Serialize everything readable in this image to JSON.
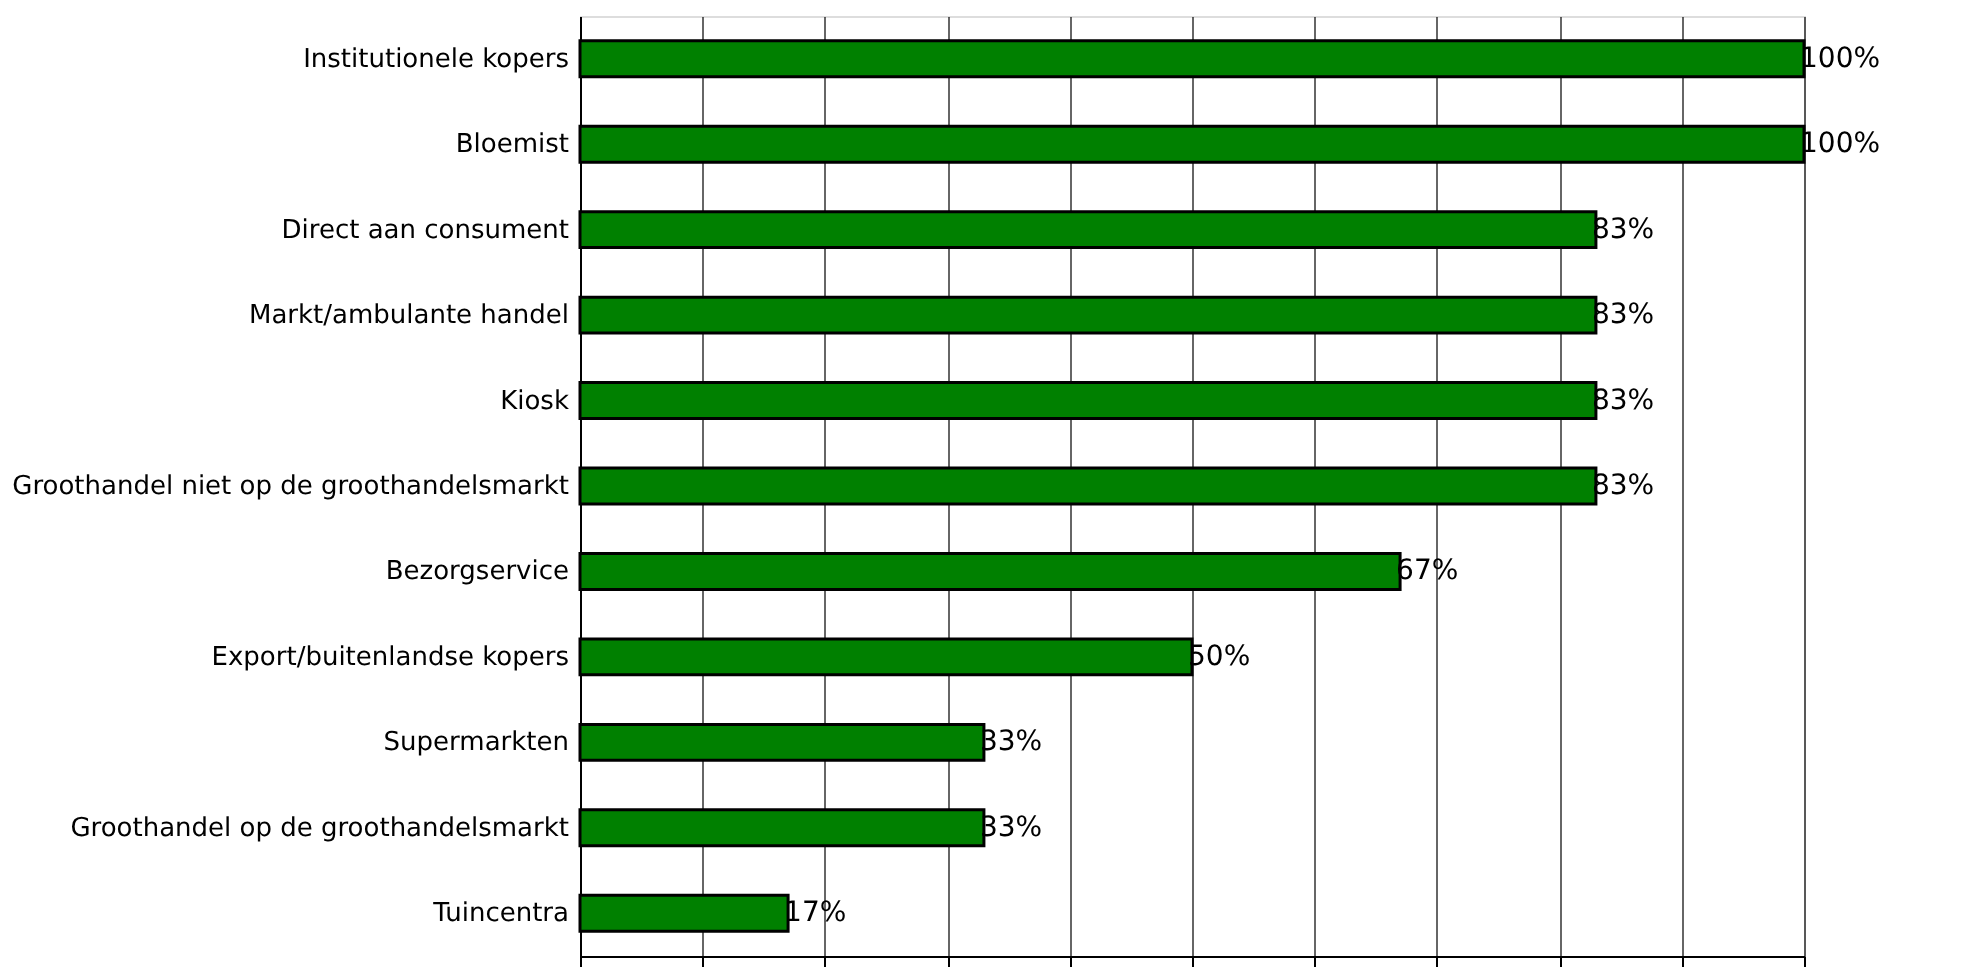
{
  "chart_data": {
    "type": "bar",
    "orientation": "horizontal",
    "categories": [
      "Institutionele kopers",
      "Bloemist",
      "Direct aan consument",
      "Markt/ambulante handel",
      "Kiosk",
      "Groothandel niet op de groothandelsmarkt",
      "Bezorgservice",
      "Export/buitenlandse kopers",
      "Supermarkten",
      "Groothandel op de groothandelsmarkt",
      "Tuincentra"
    ],
    "values": [
      100,
      100,
      83,
      83,
      83,
      83,
      67,
      50,
      33,
      33,
      17
    ],
    "value_labels": [
      "100%",
      "100%",
      "83%",
      "83%",
      "83%",
      "83%",
      "67%",
      "50%",
      "33%",
      "33%",
      "17%"
    ],
    "color": "#008000",
    "xlim": [
      0,
      100
    ],
    "xticks": [
      {
        "value": 0,
        "label": null
      },
      {
        "value": 10,
        "label": null
      },
      {
        "value": 20,
        "label": null
      },
      {
        "value": 30,
        "label": null
      },
      {
        "value": 40,
        "label": null
      },
      {
        "value": 50,
        "label": null
      },
      {
        "value": 60,
        "label": null
      },
      {
        "value": 70,
        "label": null
      },
      {
        "value": 80,
        "label": null
      },
      {
        "value": 90,
        "label": null
      },
      {
        "value": 100,
        "label": null
      }
    ],
    "grid": "x",
    "tick_labels": "y"
  }
}
